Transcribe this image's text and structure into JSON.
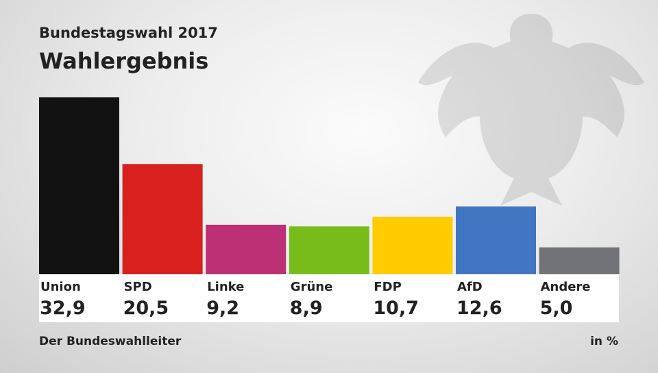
{
  "chart_data": {
    "type": "bar",
    "subtitle": "Bundestagswahl 2017",
    "title": "Wahlergebnis",
    "categories": [
      "Union",
      "SPD",
      "Linke",
      "Grüne",
      "FDP",
      "AfD",
      "Andere"
    ],
    "values": [
      32.9,
      20.5,
      9.2,
      8.9,
      10.7,
      12.6,
      5.0
    ],
    "value_labels": [
      "32,9",
      "20,5",
      "9,2",
      "8,9",
      "10,7",
      "12,6",
      "5,0"
    ],
    "colors": [
      "#121212",
      "#d8201e",
      "#bd3075",
      "#78bc1b",
      "#ffcc00",
      "#4176c2",
      "#727376"
    ],
    "ylim": [
      0,
      32.9
    ],
    "unit": "in %",
    "source": "Der Bundeswahlleiter",
    "grid": false
  }
}
